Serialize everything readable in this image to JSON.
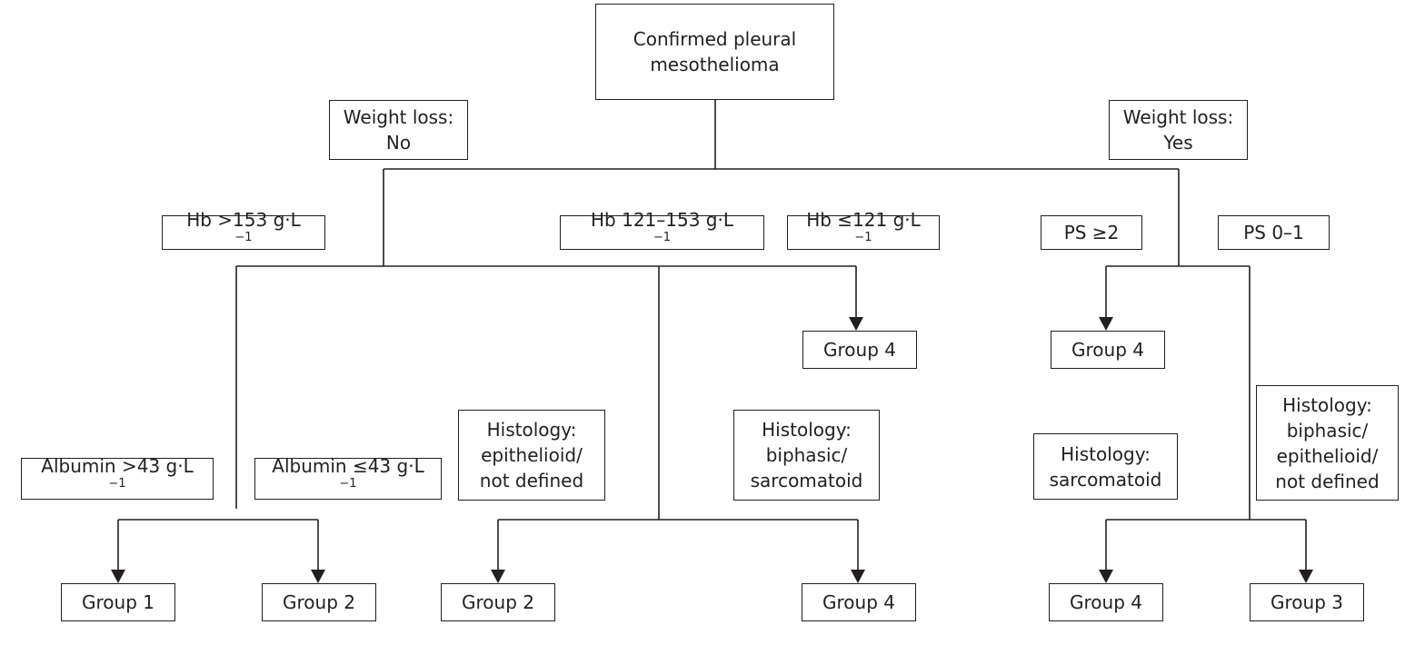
{
  "root": {
    "lines": [
      "Confirmed pleural",
      "mesothelioma"
    ]
  },
  "branches": {
    "weight_loss_no": {
      "lines": [
        "Weight loss:",
        "No"
      ]
    },
    "weight_loss_yes": {
      "lines": [
        "Weight loss:",
        "Yes"
      ]
    }
  },
  "hb": {
    "high": {
      "text": "Hb >153 g·L",
      "exp": "−1"
    },
    "mid": {
      "text": "Hb 121–153 g·L",
      "exp": "−1"
    },
    "low": {
      "text": "Hb ≤121 g·L",
      "exp": "−1"
    }
  },
  "ps": {
    "high": {
      "text": "PS ≥2"
    },
    "low": {
      "text": "PS 0–1"
    }
  },
  "albumin": {
    "high": {
      "text": "Albumin >43 g·L",
      "exp": "−1"
    },
    "low": {
      "text": "Albumin ≤43 g·L",
      "exp": "−1"
    }
  },
  "histology": {
    "epithelioid_not_defined": {
      "lines": [
        "Histology:",
        "epithelioid/",
        "not defined"
      ]
    },
    "biphasic_sarcomatoid": {
      "lines": [
        "Histology:",
        "biphasic/",
        "sarcomatoid"
      ]
    },
    "sarcomatoid": {
      "lines": [
        "Histology:",
        "sarcomatoid"
      ]
    },
    "biphasic_epithelioid_not_defined": {
      "lines": [
        "Histology:",
        "biphasic/",
        "epithelioid/",
        "not defined"
      ]
    }
  },
  "groups": {
    "hb_low_group": "Group 4",
    "ps_high_group": "Group 4",
    "albumin_high_group": "Group 1",
    "albumin_low_group": "Group 2",
    "histo_epi_group": "Group 2",
    "histo_biph_sarc_group": "Group 4",
    "histo_sarc_group": "Group 4",
    "histo_other_group": "Group 3"
  }
}
